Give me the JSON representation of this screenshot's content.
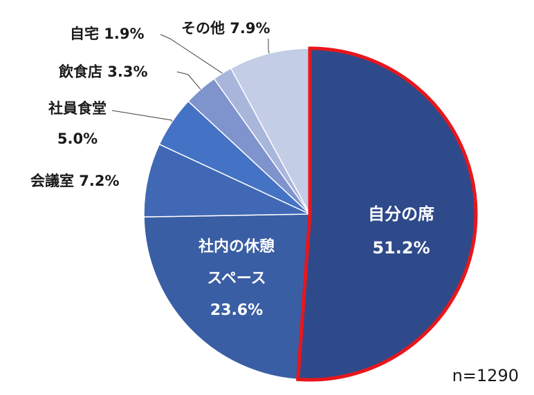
{
  "chart_data": {
    "type": "pie",
    "start_angle_deg": 0,
    "direction": "clockwise",
    "slices": [
      {
        "label": "自分の席",
        "value": 51.2,
        "display": "51.2%",
        "color": "#2f4a8a",
        "highlight": true,
        "highlight_color": "#e8161c"
      },
      {
        "label": "社内の休憩スペース",
        "label_lines": [
          "社内の休憩",
          "スペース"
        ],
        "value": 23.6,
        "display": "23.6%",
        "color": "#3a5ea3"
      },
      {
        "label": "会議室",
        "value": 7.2,
        "display": "7.2%",
        "color": "#4068b4"
      },
      {
        "label": "社員食堂",
        "value": 5.0,
        "display": "5.0%",
        "color": "#4472c4"
      },
      {
        "label": "飲食店",
        "value": 3.3,
        "display": "3.3%",
        "color": "#7f93cc"
      },
      {
        "label": "自宅",
        "value": 1.9,
        "display": "1.9%",
        "color": "#a9b6dc"
      },
      {
        "label": "その他",
        "value": 7.9,
        "display": "7.9%",
        "color": "#c4cde6"
      }
    ]
  },
  "sample_note": "n=1290"
}
